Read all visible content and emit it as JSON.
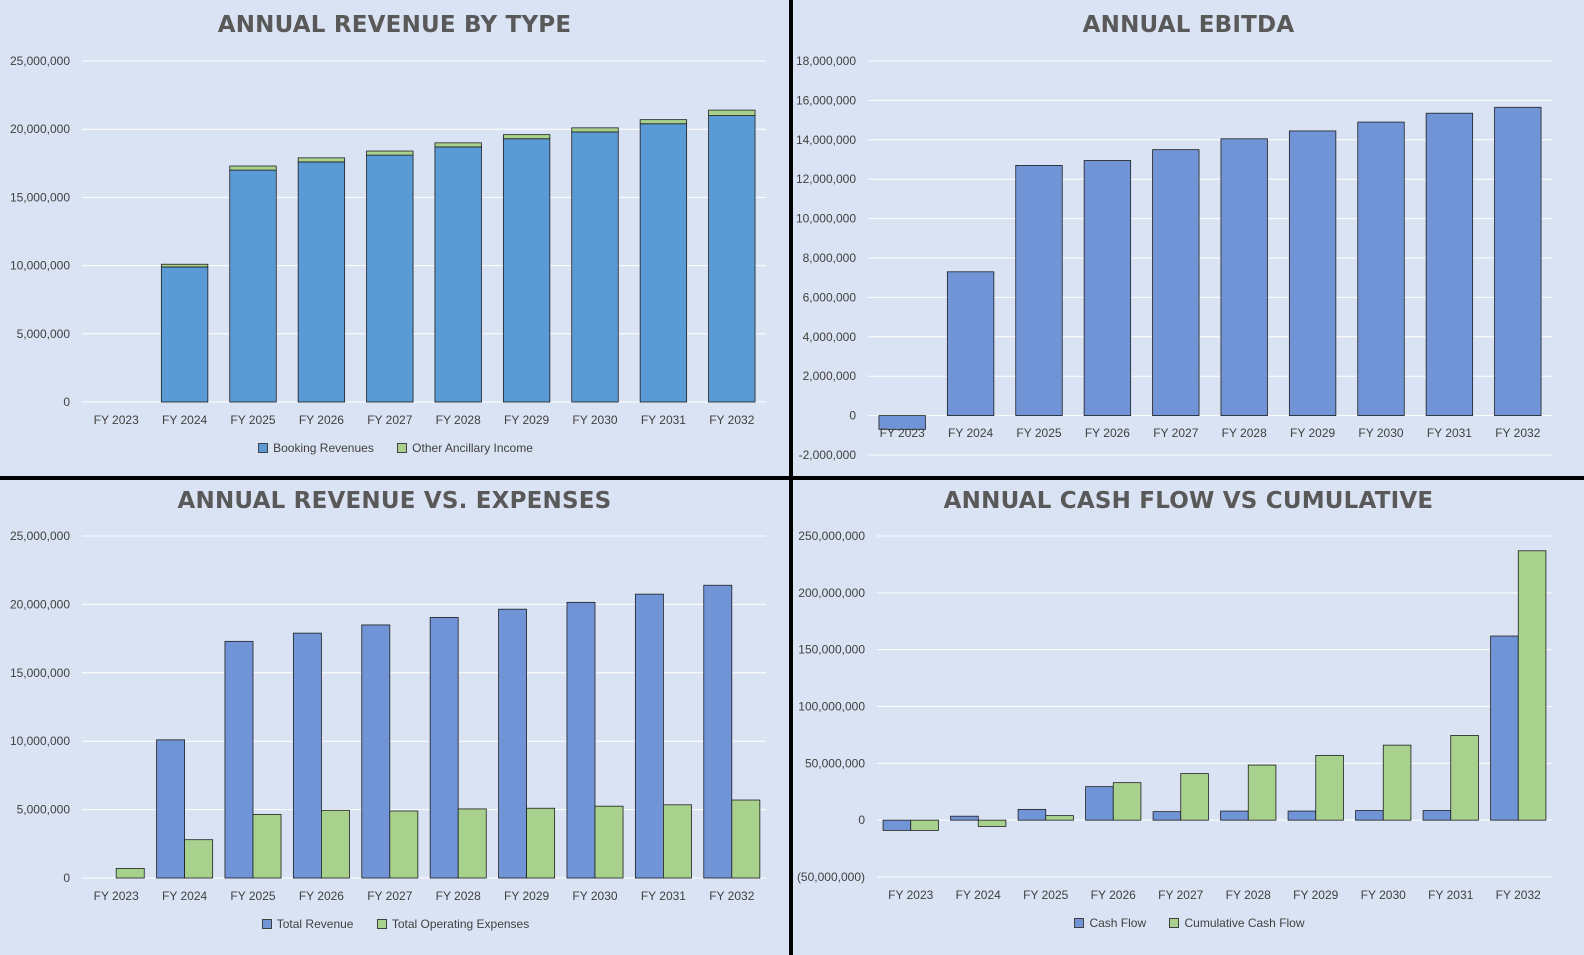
{
  "colors": {
    "background": "#dae3f3",
    "booking_blue": "#5b9bd5",
    "series_blue": "#7094d6",
    "series_green": "#a9d18e",
    "gridline": "#ffffff",
    "bar_outline": "#1f1f1f"
  },
  "chart_data": [
    {
      "type": "bar",
      "stacked": true,
      "title": "ANNUAL REVENUE BY TYPE",
      "categories": [
        "FY 2023",
        "FY 2024",
        "FY 2025",
        "FY 2026",
        "FY 2027",
        "FY 2028",
        "FY 2029",
        "FY 2030",
        "FY 2031",
        "FY 2032"
      ],
      "series": [
        {
          "name": "Booking Revenues",
          "color": "#5b9bd5",
          "values": [
            0,
            9900000,
            17000000,
            17600000,
            18100000,
            18700000,
            19300000,
            19800000,
            20400000,
            21000000
          ]
        },
        {
          "name": "Other Ancillary Income",
          "color": "#a9d18e",
          "values": [
            0,
            200000,
            300000,
            300000,
            300000,
            300000,
            300000,
            300000,
            300000,
            400000
          ]
        }
      ],
      "ylim": [
        0,
        25000000
      ],
      "yticks": [
        0,
        5000000,
        10000000,
        15000000,
        20000000,
        25000000
      ],
      "ytick_labels": [
        "0",
        "5,000,000",
        "10,000,000",
        "15,000,000",
        "20,000,000",
        "25,000,000"
      ],
      "grid": true,
      "legend": "bottom"
    },
    {
      "type": "bar",
      "title": "ANNUAL EBITDA",
      "categories": [
        "FY 2023",
        "FY 2024",
        "FY 2025",
        "FY 2026",
        "FY 2027",
        "FY 2028",
        "FY 2029",
        "FY 2030",
        "FY 2031",
        "FY 2032"
      ],
      "series": [
        {
          "color": "#7094d6",
          "values": [
            -700000,
            7300000,
            12700000,
            12950000,
            13500000,
            14050000,
            14450000,
            14900000,
            15350000,
            15650000
          ]
        }
      ],
      "ylim": [
        -2000000,
        18000000
      ],
      "yticks": [
        -2000000,
        0,
        2000000,
        4000000,
        6000000,
        8000000,
        10000000,
        12000000,
        14000000,
        16000000,
        18000000
      ],
      "ytick_labels": [
        "-2,000,000",
        "0",
        "2,000,000",
        "4,000,000",
        "6,000,000",
        "8,000,000",
        "10,000,000",
        "12,000,000",
        "14,000,000",
        "16,000,000",
        "18,000,000"
      ],
      "grid": true,
      "legend": "none"
    },
    {
      "type": "bar",
      "title": "ANNUAL REVENUE VS. EXPENSES",
      "categories": [
        "FY 2023",
        "FY 2024",
        "FY 2025",
        "FY 2026",
        "FY 2027",
        "FY 2028",
        "FY 2029",
        "FY 2030",
        "FY 2031",
        "FY 2032"
      ],
      "series": [
        {
          "name": "Total Revenue",
          "color": "#7094d6",
          "values": [
            0,
            10100000,
            17300000,
            17900000,
            18500000,
            19050000,
            19650000,
            20150000,
            20750000,
            21400000
          ]
        },
        {
          "name": "Total Operating Expenses",
          "color": "#a9d18e",
          "values": [
            700000,
            2800000,
            4650000,
            4950000,
            4900000,
            5050000,
            5100000,
            5250000,
            5350000,
            5700000
          ]
        }
      ],
      "ylim": [
        0,
        25000000
      ],
      "yticks": [
        0,
        5000000,
        10000000,
        15000000,
        20000000,
        25000000
      ],
      "ytick_labels": [
        "0",
        "5,000,000",
        "10,000,000",
        "15,000,000",
        "20,000,000",
        "25,000,000"
      ],
      "grid": true,
      "legend": "bottom"
    },
    {
      "type": "bar",
      "title": "ANNUAL CASH FLOW VS CUMULATIVE",
      "categories": [
        "FY 2023",
        "FY 2024",
        "FY 2025",
        "FY 2026",
        "FY 2027",
        "FY 2028",
        "FY 2029",
        "FY 2030",
        "FY 2031",
        "FY 2032"
      ],
      "series": [
        {
          "name": "Cash Flow",
          "color": "#7094d6",
          "values": [
            -9000000,
            3500000,
            9500000,
            29500000,
            7500000,
            8000000,
            8000000,
            8500000,
            8500000,
            162000000
          ]
        },
        {
          "name": "Cumulative Cash Flow",
          "color": "#a9d18e",
          "values": [
            -9000000,
            -5500000,
            4000000,
            33000000,
            41000000,
            48500000,
            57000000,
            66000000,
            74500000,
            237000000
          ]
        }
      ],
      "ylim": [
        -50000000,
        250000000
      ],
      "yticks": [
        -50000000,
        0,
        50000000,
        100000000,
        150000000,
        200000000,
        250000000
      ],
      "ytick_labels": [
        "(50,000,000)",
        "0",
        "50,000,000",
        "100,000,000",
        "150,000,000",
        "200,000,000",
        "250,000,000"
      ],
      "grid": true,
      "legend": "bottom"
    }
  ]
}
